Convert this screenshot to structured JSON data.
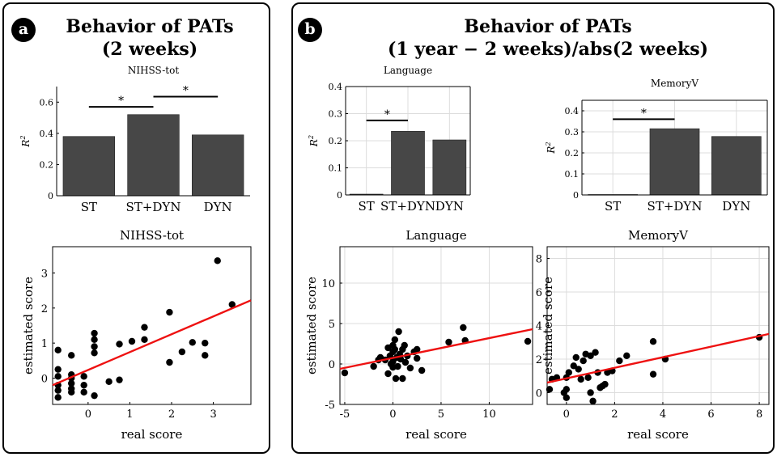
{
  "panel_a": {
    "badge": "a",
    "title_line1": "Behavior of PATs",
    "title_line2": "(2 weeks)"
  },
  "panel_b": {
    "badge": "b",
    "title_line1": "Behavior of PATs",
    "title_line2": "(1 year − 2 weeks)/abs(2 weeks)"
  },
  "colors": {
    "bar": "#474747",
    "dot": "#000000",
    "fit_line": "#ee1111",
    "grid": "#dcdcdc"
  },
  "chart_data": [
    {
      "type": "bar",
      "title": "NIHSS-tot",
      "ylabel": "R2",
      "categories": [
        "ST",
        "ST+DYN",
        "DYN"
      ],
      "values": [
        0.38,
        0.52,
        0.39
      ],
      "ylim": [
        0,
        0.7
      ],
      "yticks": [
        0,
        0.2,
        0.4,
        0.6
      ],
      "grid": false,
      "significance": [
        {
          "from": "ST",
          "to": "ST+DYN",
          "label": "*"
        },
        {
          "from": "ST+DYN",
          "to": "DYN",
          "label": "*"
        }
      ]
    },
    {
      "type": "bar",
      "title": "Language",
      "ylabel": "R2",
      "categories": [
        "ST",
        "ST+DYN",
        "DYN"
      ],
      "values": [
        0.003,
        0.235,
        0.203
      ],
      "ylim": [
        0,
        0.4
      ],
      "yticks": [
        0,
        0.1,
        0.2,
        0.3,
        0.4
      ],
      "grid": true,
      "significance": [
        {
          "from": "ST",
          "to": "ST+DYN",
          "label": "*"
        }
      ]
    },
    {
      "type": "bar",
      "title": "MemoryV",
      "ylabel": "R2",
      "categories": [
        "ST",
        "ST+DYN",
        "DYN"
      ],
      "values": [
        0.002,
        0.315,
        0.278
      ],
      "ylim": [
        0,
        0.45
      ],
      "yticks": [
        0,
        0.1,
        0.2,
        0.3,
        0.4
      ],
      "grid": true,
      "significance": [
        {
          "from": "ST",
          "to": "ST+DYN",
          "label": "*"
        }
      ]
    },
    {
      "type": "scatter",
      "title": "NIHSS-tot",
      "xlabel": "real score",
      "ylabel": "estimated score",
      "xlim": [
        -0.85,
        3.9
      ],
      "ylim": [
        -0.75,
        3.75
      ],
      "xticks": [
        0,
        1,
        2,
        3
      ],
      "yticks": [
        0,
        1,
        2,
        3
      ],
      "grid": false,
      "fit_line": {
        "x": [
          -0.85,
          3.9
        ],
        "y": [
          -0.2,
          2.22
        ]
      },
      "points": [
        [
          -0.72,
          0.8
        ],
        [
          -0.72,
          0.25
        ],
        [
          -0.72,
          0.05
        ],
        [
          -0.72,
          -0.2
        ],
        [
          -0.72,
          -0.35
        ],
        [
          -0.72,
          -0.55
        ],
        [
          -0.4,
          0.65
        ],
        [
          -0.4,
          0.1
        ],
        [
          -0.4,
          0.0
        ],
        [
          -0.4,
          -0.15
        ],
        [
          -0.4,
          -0.3
        ],
        [
          -0.4,
          -0.4
        ],
        [
          -0.1,
          0.05
        ],
        [
          -0.1,
          -0.2
        ],
        [
          -0.1,
          -0.4
        ],
        [
          0.15,
          1.28
        ],
        [
          0.15,
          1.1
        ],
        [
          0.15,
          0.9
        ],
        [
          0.15,
          0.72
        ],
        [
          0.15,
          -0.5
        ],
        [
          0.5,
          -0.1
        ],
        [
          0.75,
          0.97
        ],
        [
          0.75,
          -0.05
        ],
        [
          1.05,
          1.05
        ],
        [
          1.35,
          1.45
        ],
        [
          1.35,
          1.1
        ],
        [
          1.95,
          1.88
        ],
        [
          1.95,
          0.45
        ],
        [
          2.25,
          0.75
        ],
        [
          2.5,
          1.02
        ],
        [
          2.8,
          1.0
        ],
        [
          2.8,
          0.65
        ],
        [
          3.1,
          3.35
        ],
        [
          3.45,
          2.1
        ]
      ]
    },
    {
      "type": "scatter",
      "title": "Language",
      "xlabel": "real score",
      "ylabel": "estimated score",
      "xlim": [
        -5.5,
        14.5
      ],
      "ylim": [
        -5,
        14.5
      ],
      "xticks": [
        -5,
        0,
        5,
        10
      ],
      "yticks": [
        -5,
        0,
        5,
        10
      ],
      "grid": true,
      "fit_line": {
        "x": [
          -5.5,
          14.5
        ],
        "y": [
          -0.6,
          4.3
        ]
      },
      "points": [
        [
          -5.0,
          -1.1
        ],
        [
          -2.0,
          -0.3
        ],
        [
          -1.5,
          0.5
        ],
        [
          -1.3,
          0.8
        ],
        [
          -0.8,
          0.5
        ],
        [
          -0.5,
          2.0
        ],
        [
          -0.5,
          -1.2
        ],
        [
          -0.3,
          1.0
        ],
        [
          -0.2,
          0.0
        ],
        [
          0.0,
          2.3
        ],
        [
          0.0,
          1.5
        ],
        [
          0.0,
          0.3
        ],
        [
          0.0,
          -0.4
        ],
        [
          0.2,
          3.0
        ],
        [
          0.2,
          1.8
        ],
        [
          0.3,
          -1.8
        ],
        [
          0.4,
          0.8
        ],
        [
          0.5,
          -0.3
        ],
        [
          0.6,
          4.0
        ],
        [
          0.7,
          1.2
        ],
        [
          0.8,
          0.6
        ],
        [
          1.0,
          -1.8
        ],
        [
          1.0,
          1.8
        ],
        [
          1.2,
          2.3
        ],
        [
          1.3,
          0.2
        ],
        [
          1.5,
          1.0
        ],
        [
          1.8,
          -0.5
        ],
        [
          2.2,
          1.5
        ],
        [
          2.5,
          0.7
        ],
        [
          3.0,
          -0.8
        ],
        [
          2.5,
          1.8
        ],
        [
          5.8,
          2.7
        ],
        [
          7.3,
          4.5
        ],
        [
          7.5,
          2.9
        ],
        [
          14.0,
          2.8
        ]
      ]
    },
    {
      "type": "scatter",
      "title": "MemoryV",
      "xlabel": "real score",
      "ylabel": "estimated score",
      "xlim": [
        -0.8,
        8.4
      ],
      "ylim": [
        -0.7,
        8.7
      ],
      "xticks": [
        0,
        2,
        4,
        6,
        8
      ],
      "yticks": [
        0,
        2,
        4,
        6,
        8
      ],
      "grid": true,
      "fit_line": {
        "x": [
          -0.8,
          8.4
        ],
        "y": [
          0.6,
          3.5
        ]
      },
      "points": [
        [
          -0.7,
          0.2
        ],
        [
          -0.6,
          0.8
        ],
        [
          -0.4,
          0.9
        ],
        [
          -0.1,
          0.0
        ],
        [
          0.0,
          -0.3
        ],
        [
          0.0,
          0.2
        ],
        [
          0.0,
          0.9
        ],
        [
          0.1,
          1.2
        ],
        [
          0.3,
          1.6
        ],
        [
          0.4,
          2.1
        ],
        [
          0.5,
          1.4
        ],
        [
          0.6,
          0.8
        ],
        [
          0.7,
          1.9
        ],
        [
          0.8,
          2.3
        ],
        [
          0.9,
          0.9
        ],
        [
          1.0,
          2.2
        ],
        [
          1.0,
          0.0
        ],
        [
          1.1,
          -0.5
        ],
        [
          1.2,
          2.4
        ],
        [
          1.3,
          1.2
        ],
        [
          1.4,
          0.3
        ],
        [
          1.5,
          0.4
        ],
        [
          1.6,
          0.5
        ],
        [
          1.7,
          1.2
        ],
        [
          1.9,
          1.3
        ],
        [
          2.2,
          1.9
        ],
        [
          2.5,
          2.2
        ],
        [
          3.6,
          3.05
        ],
        [
          3.6,
          1.1
        ],
        [
          4.1,
          2.0
        ],
        [
          8.0,
          3.3
        ]
      ]
    }
  ]
}
